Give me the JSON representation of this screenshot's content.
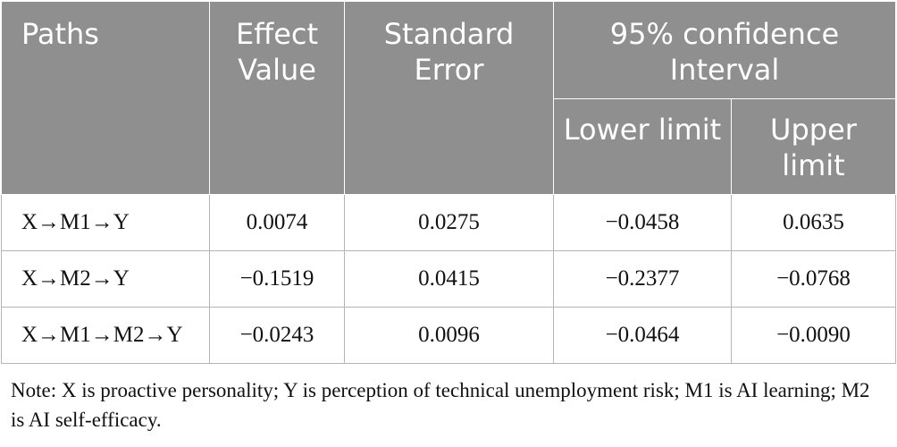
{
  "table": {
    "headers": {
      "paths": "Paths",
      "effect_value": "Effect Value",
      "standard_error": "Standard Error",
      "ci": "95% confidence Interval",
      "lower_limit": "Lower limit",
      "upper_limit": "Upper limit"
    },
    "rows": [
      {
        "path": "X→M1→Y",
        "effect": "0.0074",
        "se": "0.0275",
        "lower": "−0.0458",
        "upper": "0.0635"
      },
      {
        "path": "X→M2→Y",
        "effect": "−0.1519",
        "se": "0.0415",
        "lower": "−0.2377",
        "upper": "−0.0768"
      },
      {
        "path": "X→M1→M2→Y",
        "effect": "−0.0243",
        "se": "0.0096",
        "lower": "−0.0464",
        "upper": "−0.0090"
      }
    ]
  },
  "note": "Note: X is proactive personality; Y is perception of technical unemployment risk; M1 is AI learning; M2 is AI self-efficacy.",
  "colors": {
    "header_background": "#8f8f8f",
    "header_text": "#ffffff",
    "grid_line": "#b5b5b5"
  }
}
